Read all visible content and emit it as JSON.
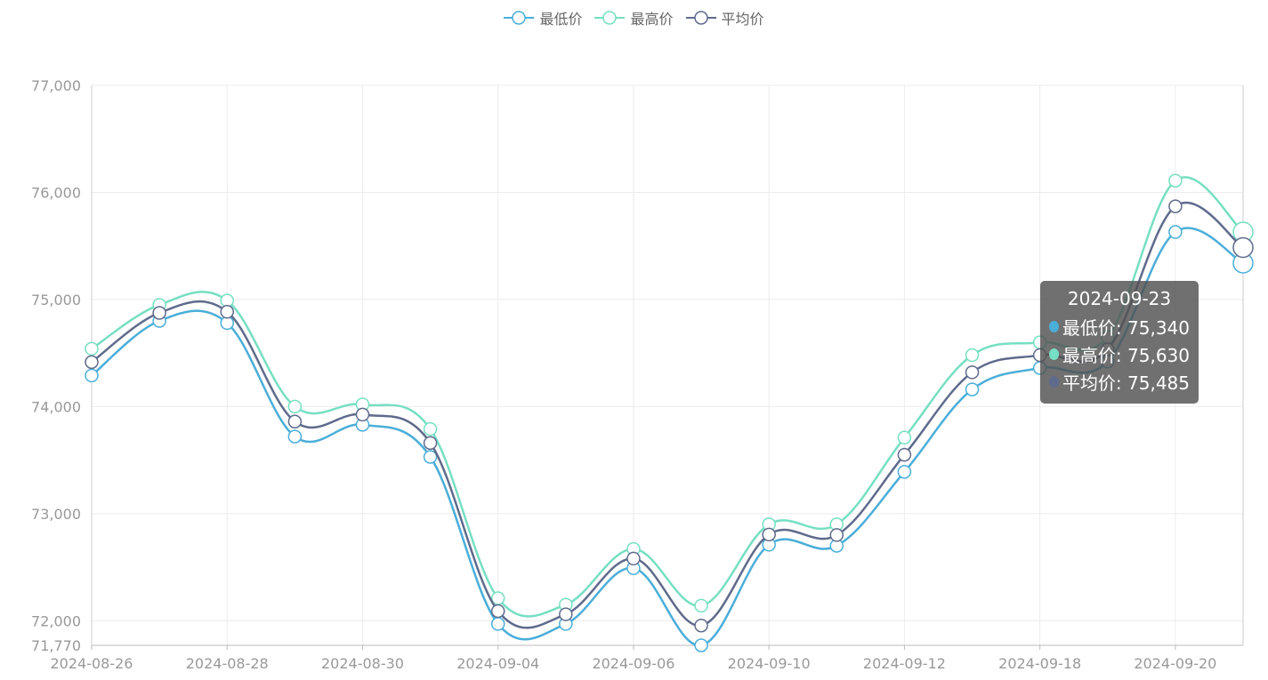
{
  "legend": [
    {
      "name": "最低价",
      "color": "#4aaed9"
    },
    {
      "name": "最高价",
      "color": "#76dfc3"
    },
    {
      "name": "平均价",
      "color": "#5f6b8c"
    }
  ],
  "tooltip": {
    "date": "2024-09-23",
    "rows": [
      {
        "label": "最低价: 75,340",
        "color": "#4aaed9"
      },
      {
        "label": "最高价: 75,630",
        "color": "#76dfc3"
      },
      {
        "label": "平均价: 75,485",
        "color": "#5f6b8c"
      }
    ]
  },
  "chart_data": {
    "type": "line",
    "smooth": true,
    "x": [
      "2024-08-26",
      "2024-08-27",
      "2024-08-28",
      "2024-08-29",
      "2024-08-30",
      "2024-09-03",
      "2024-09-04",
      "2024-09-05",
      "2024-09-06",
      "2024-09-09",
      "2024-09-10",
      "2024-09-11",
      "2024-09-12",
      "2024-09-13",
      "2024-09-18",
      "2024-09-19",
      "2024-09-20",
      "2024-09-23"
    ],
    "xtick_labels": [
      "2024-08-26",
      "2024-08-28",
      "2024-08-30",
      "2024-09-04",
      "2024-09-06",
      "2024-09-10",
      "2024-09-12",
      "2024-09-18",
      "2024-09-20"
    ],
    "ylim": [
      71770,
      77000
    ],
    "yticks": [
      71770,
      72000,
      73000,
      74000,
      75000,
      76000,
      77000
    ],
    "ytick_labels": [
      "71,770",
      "72,000",
      "73,000",
      "74,000",
      "75,000",
      "76,000",
      "77,000"
    ],
    "series": [
      {
        "name": "最低价",
        "color": "#4aaed9",
        "values": [
          74290,
          74800,
          74780,
          73720,
          73830,
          73530,
          71970,
          71970,
          72490,
          71770,
          72710,
          72700,
          73390,
          74160,
          74360,
          74420,
          75630,
          75340
        ]
      },
      {
        "name": "最高价",
        "color": "#76dfc3",
        "values": [
          74540,
          74950,
          74990,
          74000,
          74020,
          73790,
          72210,
          72150,
          72670,
          72140,
          72900,
          72900,
          73710,
          74480,
          74600,
          74650,
          76110,
          75630
        ]
      },
      {
        "name": "平均价",
        "color": "#5f6b8c",
        "values": [
          74415,
          74875,
          74885,
          73860,
          73925,
          73660,
          72090,
          72060,
          72580,
          71955,
          72805,
          72800,
          73550,
          74320,
          74480,
          74535,
          75870,
          75485
        ]
      }
    ],
    "grid": true,
    "legend_position": "top-center"
  }
}
